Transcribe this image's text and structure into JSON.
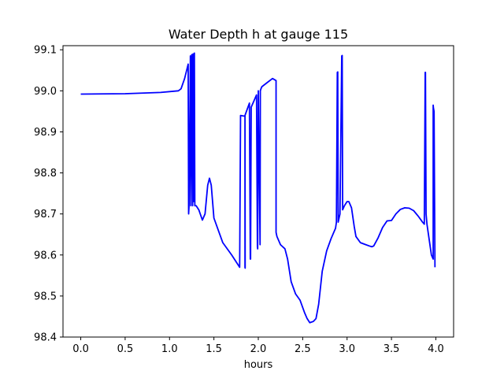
{
  "chart_data": {
    "type": "line",
    "title": "Water Depth h at gauge 115",
    "xlabel": "hours",
    "ylabel": "",
    "xlim": [
      -0.2,
      4.2
    ],
    "ylim": [
      98.4,
      99.11
    ],
    "x_ticks": [
      0.0,
      0.5,
      1.0,
      1.5,
      2.0,
      2.5,
      3.0,
      3.5,
      4.0
    ],
    "x_tick_labels": [
      "0.0",
      "0.5",
      "1.0",
      "1.5",
      "2.0",
      "2.5",
      "3.0",
      "3.5",
      "4.0"
    ],
    "y_ticks": [
      98.4,
      98.5,
      98.6,
      98.7,
      98.8,
      98.9,
      99.0,
      99.1
    ],
    "y_tick_labels": [
      "98.4",
      "98.5",
      "98.6",
      "98.7",
      "98.8",
      "98.9",
      "99.0",
      "99.1"
    ],
    "grid": false,
    "series": [
      {
        "color": "#0000ff",
        "x": [
          0.0,
          0.5,
          0.9,
          1.1,
          1.13,
          1.17,
          1.21,
          1.215,
          1.22,
          1.235,
          1.24,
          1.25,
          1.26,
          1.265,
          1.27,
          1.28,
          1.285,
          1.29,
          1.3,
          1.33,
          1.37,
          1.4,
          1.43,
          1.45,
          1.47,
          1.5,
          1.55,
          1.6,
          1.7,
          1.79,
          1.8,
          1.85,
          1.85,
          1.852,
          1.85,
          1.9,
          1.91,
          1.913,
          1.92,
          1.98,
          1.99,
          1.993,
          2.0,
          2.02,
          2.02,
          2.023,
          2.03,
          2.04,
          2.1,
          2.16,
          2.2,
          2.2,
          2.21,
          2.25,
          2.3,
          2.33,
          2.37,
          2.42,
          2.47,
          2.52,
          2.55,
          2.58,
          2.62,
          2.65,
          2.68,
          2.72,
          2.77,
          2.82,
          2.87,
          2.88,
          2.89,
          2.895,
          2.9,
          2.92,
          2.94,
          2.945,
          2.95,
          2.97,
          3.0,
          3.02,
          3.05,
          3.08,
          3.1,
          3.15,
          3.2,
          3.25,
          3.28,
          3.3,
          3.35,
          3.4,
          3.45,
          3.5,
          3.55,
          3.6,
          3.65,
          3.7,
          3.75,
          3.8,
          3.85,
          3.87,
          3.88,
          3.883,
          3.89,
          3.9,
          3.95,
          3.97,
          3.97,
          3.973,
          3.98,
          3.99
        ],
        "y": [
          98.992,
          98.993,
          98.996,
          99.0,
          99.005,
          99.03,
          99.065,
          98.7,
          98.72,
          99.085,
          98.72,
          99.088,
          98.72,
          99.09,
          98.73,
          99.092,
          98.72,
          98.72,
          98.72,
          98.71,
          98.685,
          98.7,
          98.77,
          98.787,
          98.77,
          98.69,
          98.66,
          98.63,
          98.6,
          98.57,
          98.94,
          98.938,
          98.57,
          98.568,
          98.94,
          98.97,
          98.59,
          98.59,
          98.96,
          98.99,
          98.62,
          98.615,
          99.0,
          98.625,
          98.625,
          99.0,
          99.005,
          99.01,
          99.02,
          99.03,
          99.025,
          98.655,
          98.645,
          98.625,
          98.615,
          98.59,
          98.535,
          98.505,
          98.49,
          98.46,
          98.445,
          98.435,
          98.438,
          98.445,
          98.48,
          98.56,
          98.61,
          98.64,
          98.665,
          98.68,
          99.045,
          99.046,
          98.68,
          98.7,
          99.085,
          99.086,
          98.71,
          98.72,
          98.73,
          98.73,
          98.715,
          98.67,
          98.645,
          98.63,
          98.626,
          98.622,
          98.62,
          98.622,
          98.642,
          98.667,
          98.683,
          98.684,
          98.7,
          98.711,
          98.715,
          98.714,
          98.708,
          98.695,
          98.68,
          98.675,
          99.045,
          99.045,
          98.7,
          98.675,
          98.6,
          98.59,
          98.965,
          98.958,
          98.95,
          98.57
        ]
      }
    ]
  }
}
